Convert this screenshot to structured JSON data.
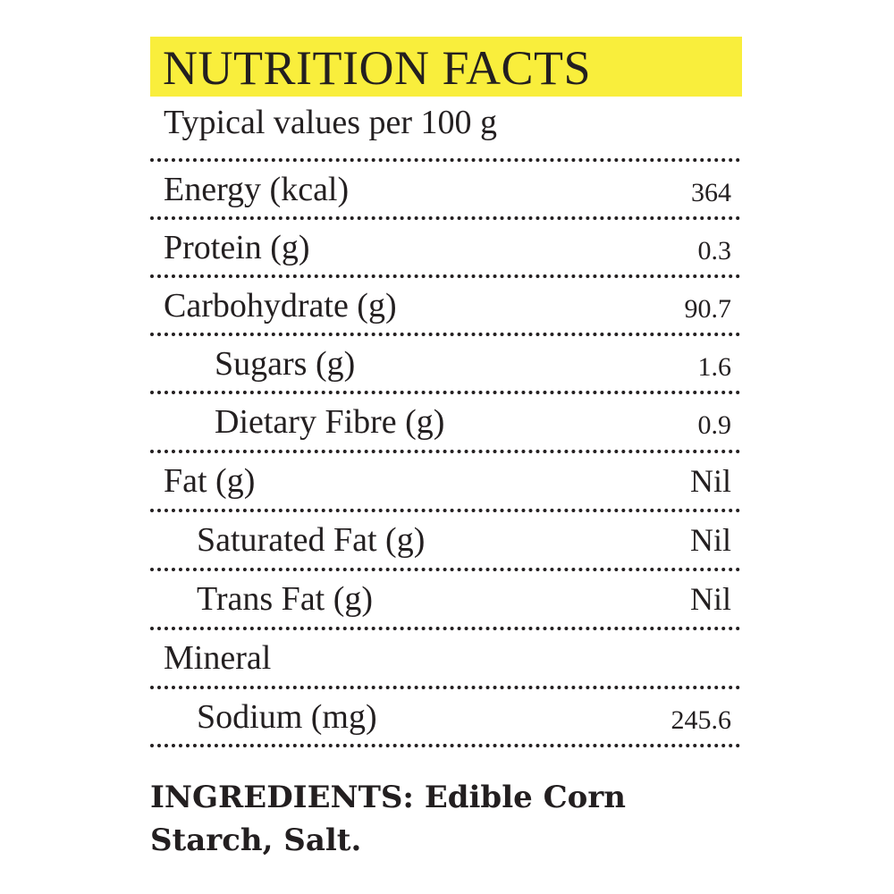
{
  "title": "NUTRITION FACTS",
  "subtitle": "Typical values per 100 g",
  "highlight_color": "#f9ee3c",
  "rows": [
    {
      "label": "Energy (kcal)",
      "value": "364"
    },
    {
      "label": "Protein (g)",
      "value": "0.3"
    },
    {
      "label": "Carbohydrate (g)",
      "value": "90.7"
    },
    {
      "label": "Sugars (g)",
      "value": "1.6"
    },
    {
      "label": "Dietary Fibre (g)",
      "value": "0.9"
    },
    {
      "label": "Fat (g)",
      "value": "Nil"
    },
    {
      "label": "Saturated Fat (g)",
      "value": "Nil"
    },
    {
      "label": "Trans Fat (g)",
      "value": "Nil"
    },
    {
      "label": "Mineral",
      "value": ""
    },
    {
      "label": "Sodium (mg)",
      "value": "245.6"
    }
  ],
  "ingredients": "INGREDIENTS: Edible Corn Starch, Salt."
}
